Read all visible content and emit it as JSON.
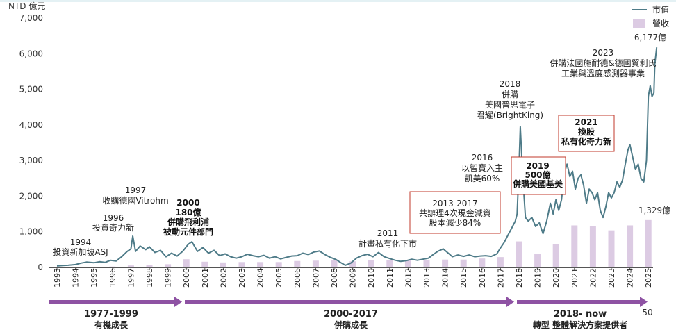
{
  "chart_data": {
    "type": "line",
    "unit_label": "NTD 億元",
    "ylim": [
      0,
      7000
    ],
    "yticks": [
      "0",
      "1,000",
      "2,000",
      "3,000",
      "4,000",
      "5,000",
      "6,000",
      "7,000"
    ],
    "ytick_values": [
      0,
      1000,
      2000,
      3000,
      4000,
      5000,
      6000,
      7000
    ],
    "x_categories": [
      "1993",
      "1994",
      "1995",
      "1996",
      "1997",
      "1998",
      "1999",
      "2000",
      "2001",
      "2002",
      "2003",
      "2004",
      "2005",
      "2006",
      "2007",
      "2008",
      "2009",
      "2010",
      "2011",
      "2012",
      "2013",
      "2014",
      "2015",
      "2016",
      "2017",
      "2018",
      "2019",
      "2020",
      "2021",
      "2022",
      "2023",
      "2024",
      "2025"
    ],
    "legend": {
      "market_cap": "市值",
      "revenue": "營收"
    },
    "colors": {
      "market_cap": "#4e7b88",
      "revenue": "#dccbe3",
      "arrow": "#8e52a3",
      "box": "#c0392b"
    },
    "series": [
      {
        "name": "市值",
        "kind": "line",
        "points": [
          [
            1993.0,
            40
          ],
          [
            1993.3,
            55
          ],
          [
            1993.6,
            60
          ],
          [
            1994.0,
            80
          ],
          [
            1994.3,
            120
          ],
          [
            1994.6,
            150
          ],
          [
            1995.0,
            130
          ],
          [
            1995.3,
            160
          ],
          [
            1995.6,
            140
          ],
          [
            1995.9,
            200
          ],
          [
            1996.2,
            180
          ],
          [
            1996.5,
            300
          ],
          [
            1996.8,
            450
          ],
          [
            1997.0,
            520
          ],
          [
            1997.1,
            880
          ],
          [
            1997.25,
            450
          ],
          [
            1997.5,
            600
          ],
          [
            1997.8,
            500
          ],
          [
            1998.0,
            580
          ],
          [
            1998.3,
            420
          ],
          [
            1998.6,
            480
          ],
          [
            1998.9,
            300
          ],
          [
            1999.2,
            400
          ],
          [
            1999.5,
            320
          ],
          [
            1999.8,
            450
          ],
          [
            2000.1,
            650
          ],
          [
            2000.3,
            720
          ],
          [
            2000.6,
            450
          ],
          [
            2000.9,
            560
          ],
          [
            2001.2,
            400
          ],
          [
            2001.5,
            480
          ],
          [
            2001.8,
            330
          ],
          [
            2002.1,
            380
          ],
          [
            2002.4,
            300
          ],
          [
            2002.7,
            260
          ],
          [
            2003.0,
            300
          ],
          [
            2003.3,
            370
          ],
          [
            2003.6,
            330
          ],
          [
            2003.9,
            300
          ],
          [
            2004.2,
            340
          ],
          [
            2004.5,
            260
          ],
          [
            2004.8,
            300
          ],
          [
            2005.1,
            240
          ],
          [
            2005.4,
            280
          ],
          [
            2005.7,
            320
          ],
          [
            2006.0,
            330
          ],
          [
            2006.3,
            400
          ],
          [
            2006.6,
            360
          ],
          [
            2006.9,
            430
          ],
          [
            2007.2,
            460
          ],
          [
            2007.5,
            360
          ],
          [
            2007.8,
            280
          ],
          [
            2008.1,
            220
          ],
          [
            2008.4,
            120
          ],
          [
            2008.6,
            60
          ],
          [
            2008.9,
            120
          ],
          [
            2009.2,
            260
          ],
          [
            2009.5,
            330
          ],
          [
            2009.8,
            370
          ],
          [
            2010.1,
            300
          ],
          [
            2010.4,
            420
          ],
          [
            2010.7,
            300
          ],
          [
            2011.0,
            250
          ],
          [
            2011.3,
            200
          ],
          [
            2011.6,
            170
          ],
          [
            2011.9,
            190
          ],
          [
            2012.2,
            230
          ],
          [
            2012.5,
            200
          ],
          [
            2012.8,
            230
          ],
          [
            2013.1,
            260
          ],
          [
            2013.3,
            340
          ],
          [
            2013.6,
            450
          ],
          [
            2013.9,
            520
          ],
          [
            2014.1,
            430
          ],
          [
            2014.4,
            300
          ],
          [
            2014.7,
            350
          ],
          [
            2015.0,
            310
          ],
          [
            2015.3,
            350
          ],
          [
            2015.6,
            300
          ],
          [
            2015.9,
            320
          ],
          [
            2016.2,
            330
          ],
          [
            2016.5,
            310
          ],
          [
            2016.8,
            380
          ],
          [
            2017.0,
            550
          ],
          [
            2017.2,
            700
          ],
          [
            2017.4,
            900
          ],
          [
            2017.6,
            1100
          ],
          [
            2017.8,
            1300
          ],
          [
            2017.9,
            1500
          ],
          [
            2018.0,
            2800
          ],
          [
            2018.07,
            3950
          ],
          [
            2018.2,
            2600
          ],
          [
            2018.35,
            1400
          ],
          [
            2018.5,
            1300
          ],
          [
            2018.7,
            1400
          ],
          [
            2018.9,
            1150
          ],
          [
            2019.1,
            1250
          ],
          [
            2019.3,
            950
          ],
          [
            2019.5,
            1300
          ],
          [
            2019.7,
            1800
          ],
          [
            2019.85,
            1500
          ],
          [
            2020.0,
            1900
          ],
          [
            2020.15,
            1600
          ],
          [
            2020.3,
            1900
          ],
          [
            2020.45,
            2650
          ],
          [
            2020.6,
            2900
          ],
          [
            2020.75,
            2550
          ],
          [
            2020.9,
            2700
          ],
          [
            2021.05,
            2200
          ],
          [
            2021.2,
            2500
          ],
          [
            2021.35,
            2600
          ],
          [
            2021.5,
            2300
          ],
          [
            2021.65,
            1800
          ],
          [
            2021.8,
            2200
          ],
          [
            2021.95,
            2100
          ],
          [
            2022.1,
            1900
          ],
          [
            2022.25,
            2100
          ],
          [
            2022.4,
            1600
          ],
          [
            2022.55,
            1400
          ],
          [
            2022.7,
            1700
          ],
          [
            2022.85,
            2100
          ],
          [
            2023.0,
            1950
          ],
          [
            2023.15,
            2100
          ],
          [
            2023.3,
            2400
          ],
          [
            2023.45,
            2250
          ],
          [
            2023.6,
            2450
          ],
          [
            2023.75,
            2900
          ],
          [
            2023.9,
            3300
          ],
          [
            2024.0,
            3450
          ],
          [
            2024.15,
            3100
          ],
          [
            2024.3,
            2750
          ],
          [
            2024.45,
            2900
          ],
          [
            2024.6,
            2500
          ],
          [
            2024.75,
            2400
          ],
          [
            2024.9,
            3000
          ],
          [
            2025.0,
            4800
          ],
          [
            2025.1,
            5100
          ],
          [
            2025.2,
            4800
          ],
          [
            2025.3,
            4900
          ],
          [
            2025.35,
            5700
          ],
          [
            2025.45,
            6177
          ]
        ]
      },
      {
        "name": "營收",
        "kind": "bar",
        "years": [
          1993,
          1994,
          1995,
          1996,
          1997,
          1998,
          1999,
          2000,
          2001,
          2002,
          2003,
          2004,
          2005,
          2006,
          2007,
          2008,
          2009,
          2010,
          2011,
          2012,
          2013,
          2014,
          2015,
          2016,
          2017,
          2018,
          2019,
          2020,
          2021,
          2022,
          2023,
          2024,
          2025
        ],
        "values": [
          5,
          10,
          15,
          25,
          55,
          70,
          90,
          230,
          160,
          140,
          150,
          150,
          150,
          180,
          190,
          210,
          170,
          200,
          200,
          210,
          210,
          220,
          220,
          250,
          290,
          730,
          370,
          650,
          1180,
          1160,
          1040,
          1180,
          1329
        ]
      }
    ],
    "value_labels": {
      "market_cap_last": "6,177億",
      "revenue_last": "1,329億"
    },
    "annotations": [
      {
        "id": "a1994",
        "lines": [
          "1994",
          "投資新加坡ASJ"
        ],
        "boxed": false,
        "bold": false
      },
      {
        "id": "a1996",
        "lines": [
          "1996",
          "投資奇力新"
        ],
        "boxed": false,
        "bold": false
      },
      {
        "id": "a1997",
        "lines": [
          "1997",
          "收購德國Vitrohm"
        ],
        "boxed": false,
        "bold": false
      },
      {
        "id": "a2000",
        "lines": [
          "2000",
          "180億",
          "併購飛利浦",
          "被動元件部門"
        ],
        "boxed": false,
        "bold": true
      },
      {
        "id": "a2011",
        "lines": [
          "2011",
          "計畫私有化下市"
        ],
        "boxed": false,
        "bold": false
      },
      {
        "id": "a2013",
        "lines": [
          "2013-2017",
          "共辦理4次現金減資",
          "股本減少84%"
        ],
        "boxed": true,
        "bold": false
      },
      {
        "id": "a2016",
        "lines": [
          "2016",
          "以智寶入主",
          "凱美60%"
        ],
        "boxed": false,
        "bold": false
      },
      {
        "id": "a2018",
        "lines": [
          "2018",
          "併購",
          "美國普思電子",
          "君耀(BrightKing)"
        ],
        "boxed": false,
        "bold": false
      },
      {
        "id": "a2019",
        "lines": [
          "2019",
          "500億",
          "併購美國基美"
        ],
        "boxed": true,
        "bold": true
      },
      {
        "id": "a2021",
        "lines": [
          "2021",
          "換股",
          "私有化奇力新"
        ],
        "boxed": true,
        "bold": true
      },
      {
        "id": "a2023",
        "lines": [
          "2023",
          "併購法國施耐德&德國貿利氏",
          "工業與溫度感測器事業"
        ],
        "boxed": false,
        "bold": false
      }
    ],
    "phases": [
      {
        "title": "1977-1999",
        "subtitle": "有機成長"
      },
      {
        "title": "2000-2017",
        "subtitle": "併購成長"
      },
      {
        "title": "2018- now",
        "subtitle": "轉型 整體解決方案提供者"
      }
    ],
    "page_number": "50"
  }
}
